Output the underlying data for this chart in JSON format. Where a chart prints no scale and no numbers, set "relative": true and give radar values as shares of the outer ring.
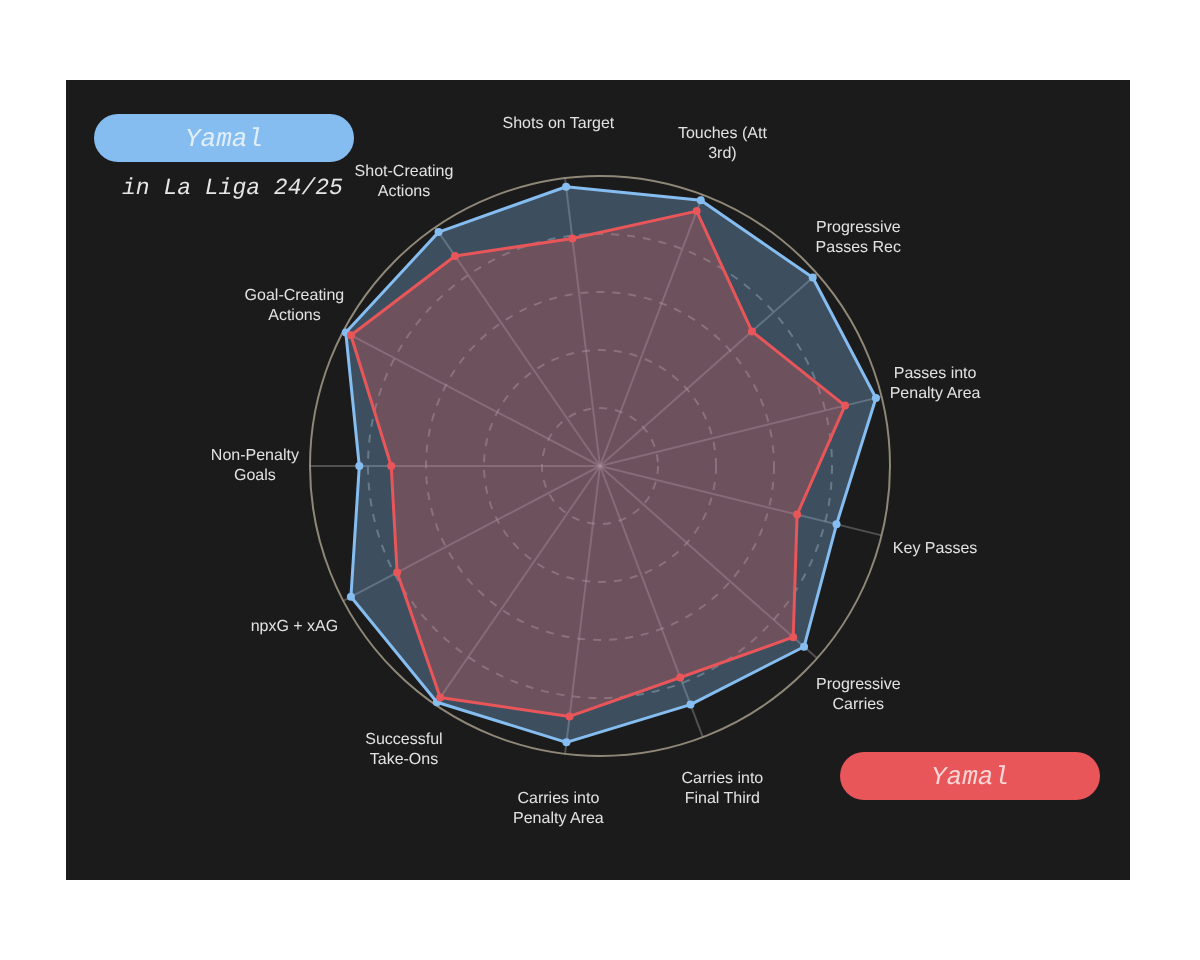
{
  "chart_data": {
    "type": "radar",
    "categories": [
      "Shots on Target",
      "Touches (Att 3rd)",
      "Progressive Passes Rec",
      "Passes into Penalty Area",
      "Key Passes",
      "Progressive Carries",
      "Carries into Final Third",
      "Carries into Penalty Area",
      "Successful Take-Ons",
      "npxG + xAG",
      "Non-Penalty Goals",
      "Goal-Creating Actions",
      "Shot-Creating Actions"
    ],
    "series": [
      {
        "name": "Yamal",
        "color": "#86bdf0",
        "values": [
          0.97,
          0.98,
          0.98,
          0.98,
          0.84,
          0.94,
          0.88,
          0.96,
          0.99,
          0.97,
          0.83,
          0.99,
          0.98
        ]
      },
      {
        "name": "Yamal",
        "color": "#e8565a",
        "values": [
          0.79,
          0.94,
          0.7,
          0.87,
          0.7,
          0.89,
          0.78,
          0.87,
          0.97,
          0.79,
          0.72,
          0.97,
          0.88
        ]
      }
    ],
    "relative": true,
    "grid": true,
    "legend": "top left",
    "marker": "circle",
    "annotations": [
      "in La Liga 24/25"
    ]
  }
}
